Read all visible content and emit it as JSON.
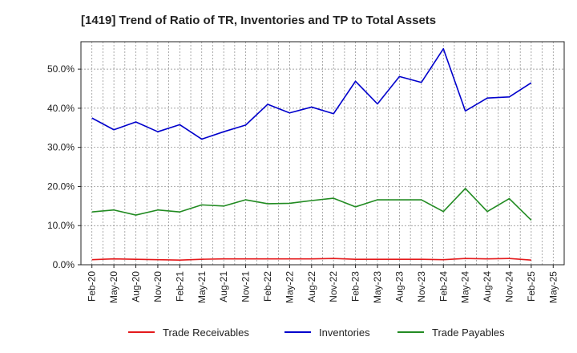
{
  "chart_data": {
    "type": "line",
    "title": "[1419]  Trend of Ratio of TR, Inventories and TP to Total Assets",
    "xlabel": "",
    "ylabel": "",
    "x": [
      "Feb-20",
      "May-20",
      "Aug-20",
      "Nov-20",
      "Feb-21",
      "May-21",
      "Aug-21",
      "Nov-21",
      "Feb-22",
      "May-22",
      "Aug-22",
      "Nov-22",
      "Feb-23",
      "May-23",
      "Aug-23",
      "Nov-23",
      "Feb-24",
      "May-24",
      "Aug-24",
      "Nov-24",
      "Feb-25",
      "May-25"
    ],
    "ylim": [
      0,
      57
    ],
    "yticks": [
      0,
      10,
      20,
      30,
      40,
      50
    ],
    "ytick_labels": [
      "0.0%",
      "10.0%",
      "20.0%",
      "30.0%",
      "40.0%",
      "50.0%"
    ],
    "grid": true,
    "legend_position": "bottom",
    "series": [
      {
        "name": "Trade Receivables",
        "color": "#e41a1c",
        "values": [
          1.3,
          1.5,
          1.4,
          1.3,
          1.2,
          1.4,
          1.5,
          1.5,
          1.5,
          1.5,
          1.5,
          1.6,
          1.4,
          1.4,
          1.4,
          1.4,
          1.3,
          1.6,
          1.5,
          1.6,
          1.2,
          null
        ]
      },
      {
        "name": "Inventories",
        "color": "#0000cc",
        "values": [
          37.5,
          34.5,
          36.5,
          34.0,
          35.8,
          32.1,
          34.0,
          35.7,
          41.0,
          38.8,
          40.3,
          38.6,
          46.9,
          41.1,
          48.1,
          46.6,
          55.2,
          39.3,
          42.6,
          42.9,
          46.5,
          null
        ]
      },
      {
        "name": "Trade Payables",
        "color": "#228b22",
        "values": [
          13.5,
          14.0,
          12.7,
          14.0,
          13.5,
          15.3,
          15.0,
          16.6,
          15.6,
          15.7,
          16.4,
          17.0,
          14.8,
          16.6,
          16.6,
          16.6,
          13.6,
          19.5,
          13.6,
          16.9,
          11.4,
          null
        ]
      }
    ]
  }
}
